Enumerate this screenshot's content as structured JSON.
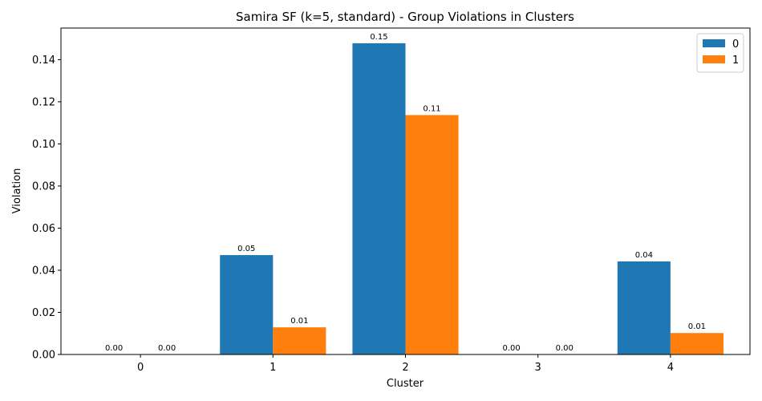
{
  "chart_data": {
    "type": "bar",
    "title": "Samira SF (k=5, standard) - Group Violations in Clusters",
    "xlabel": "Cluster",
    "ylabel": "Violation",
    "categories": [
      "0",
      "1",
      "2",
      "3",
      "4"
    ],
    "series": [
      {
        "name": "0",
        "color": "#1f77b4",
        "values": [
          0.0,
          0.0472,
          0.1478,
          0.0,
          0.0442
        ],
        "labels": [
          "0.00",
          "0.05",
          "0.15",
          "0.00",
          "0.04"
        ]
      },
      {
        "name": "1",
        "color": "#ff7f0e",
        "values": [
          0.0,
          0.0129,
          0.1137,
          0.0,
          0.0102
        ],
        "labels": [
          "0.00",
          "0.01",
          "0.11",
          "0.00",
          "0.01"
        ]
      }
    ],
    "ylim": [
      0,
      0.155
    ],
    "yticks": [
      0.0,
      0.02,
      0.04,
      0.06,
      0.08,
      0.1,
      0.12,
      0.14
    ],
    "ytick_labels": [
      "0.00",
      "0.02",
      "0.04",
      "0.06",
      "0.08",
      "0.10",
      "0.12",
      "0.14"
    ],
    "grid": false,
    "legend_position": "top-right"
  }
}
